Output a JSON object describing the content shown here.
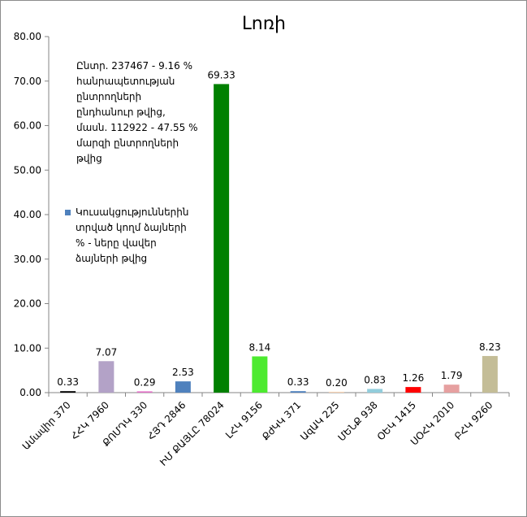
{
  "chart_data": {
    "type": "bar",
    "title": "Լոռի",
    "xlabel": "",
    "ylabel": "",
    "ylim": [
      0,
      80
    ],
    "yticks": [
      "0.00",
      "10.00",
      "20.00",
      "30.00",
      "40.00",
      "50.00",
      "60.00",
      "70.00",
      "80.00"
    ],
    "grid": false,
    "categories": [
      "Ամավիր 370",
      "ՀՀԿ 7960",
      "ՔՈՄԴԿ 330",
      "ՀՅԴ 2846",
      "ԻՄ ՔԱՅԼԸ 78024",
      "ԼՀԿ 9156",
      "ՔժԿԿ 371",
      "ԱզԱԿ 225",
      "ՄԵՆՔ 938",
      "ՕԵԿ 1415",
      "ՍՕՀԿ 2010",
      "ԲՀԿ 9260"
    ],
    "values": [
      0.33,
      7.07,
      0.29,
      2.53,
      69.33,
      8.14,
      0.33,
      0.2,
      0.83,
      1.26,
      1.79,
      8.23
    ],
    "value_labels": [
      "0.33",
      "7.07",
      "0.29",
      "2.53",
      "69.33",
      "8.14",
      "0.33",
      "0.20",
      "0.83",
      "1.26",
      "1.79",
      "8.23"
    ],
    "colors": [
      "#000000",
      "#b3a2c7",
      "#e36fc7",
      "#4f81bd",
      "#008000",
      "#4dea30",
      "#4f81bd",
      "#fcd5b4",
      "#92cddc",
      "#ff0000",
      "#e6a0a0",
      "#c4bd97"
    ],
    "legend": {
      "placement": "top-left",
      "entries": [
        "Կուսակցություններին տրված կողմ ձայների % - ները վավեր ձայների թվից"
      ],
      "swatch_color": "#4f81bd"
    },
    "annotation": "Ընտր. 237467 - 9.16 % հանրապետության ընտրողների ընդհանուր թվից, մասն. 112922 - 47.55 % մարզի ընտրողների թվից"
  }
}
